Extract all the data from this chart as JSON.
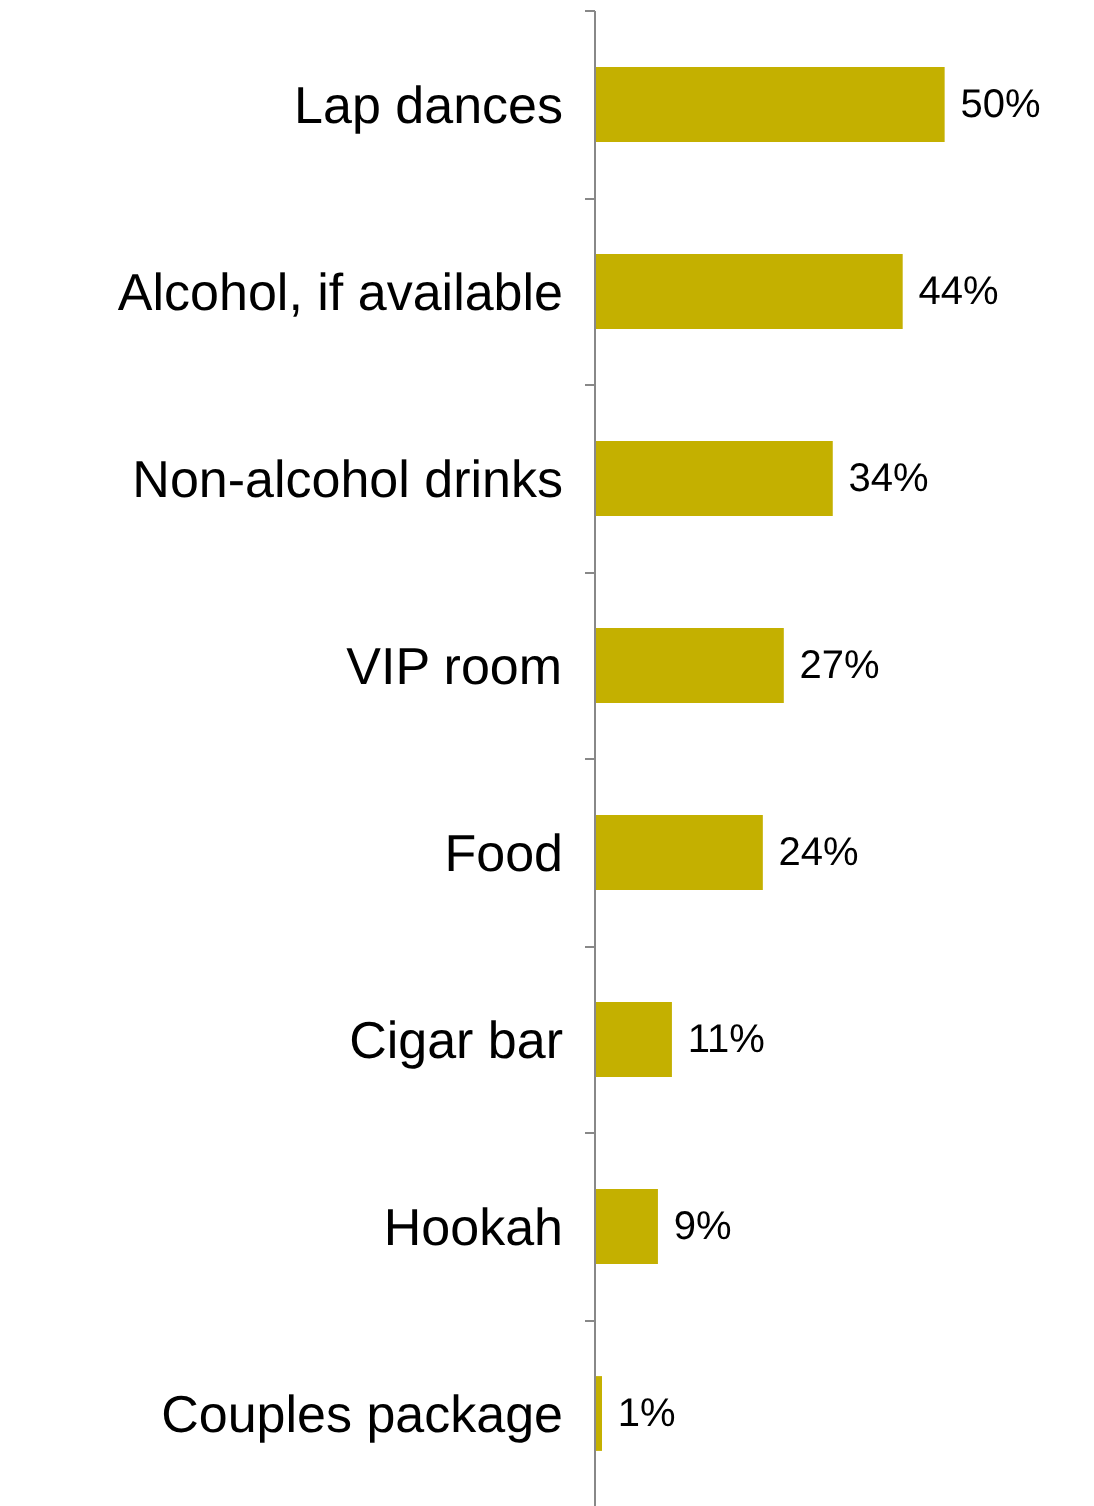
{
  "chart_data": {
    "type": "bar",
    "orientation": "horizontal",
    "categories": [
      "Lap dances",
      "Alcohol, if available",
      "Non-alcohol drinks",
      "VIP room",
      "Food",
      "Cigar bar",
      "Hookah",
      "Couples package"
    ],
    "values": [
      50,
      44,
      34,
      27,
      24,
      11,
      9,
      1
    ],
    "value_labels": [
      "50%",
      "44%",
      "34%",
      "27%",
      "24%",
      "11%",
      "9%",
      "1%"
    ],
    "color": "#c4b000",
    "grid": false
  }
}
